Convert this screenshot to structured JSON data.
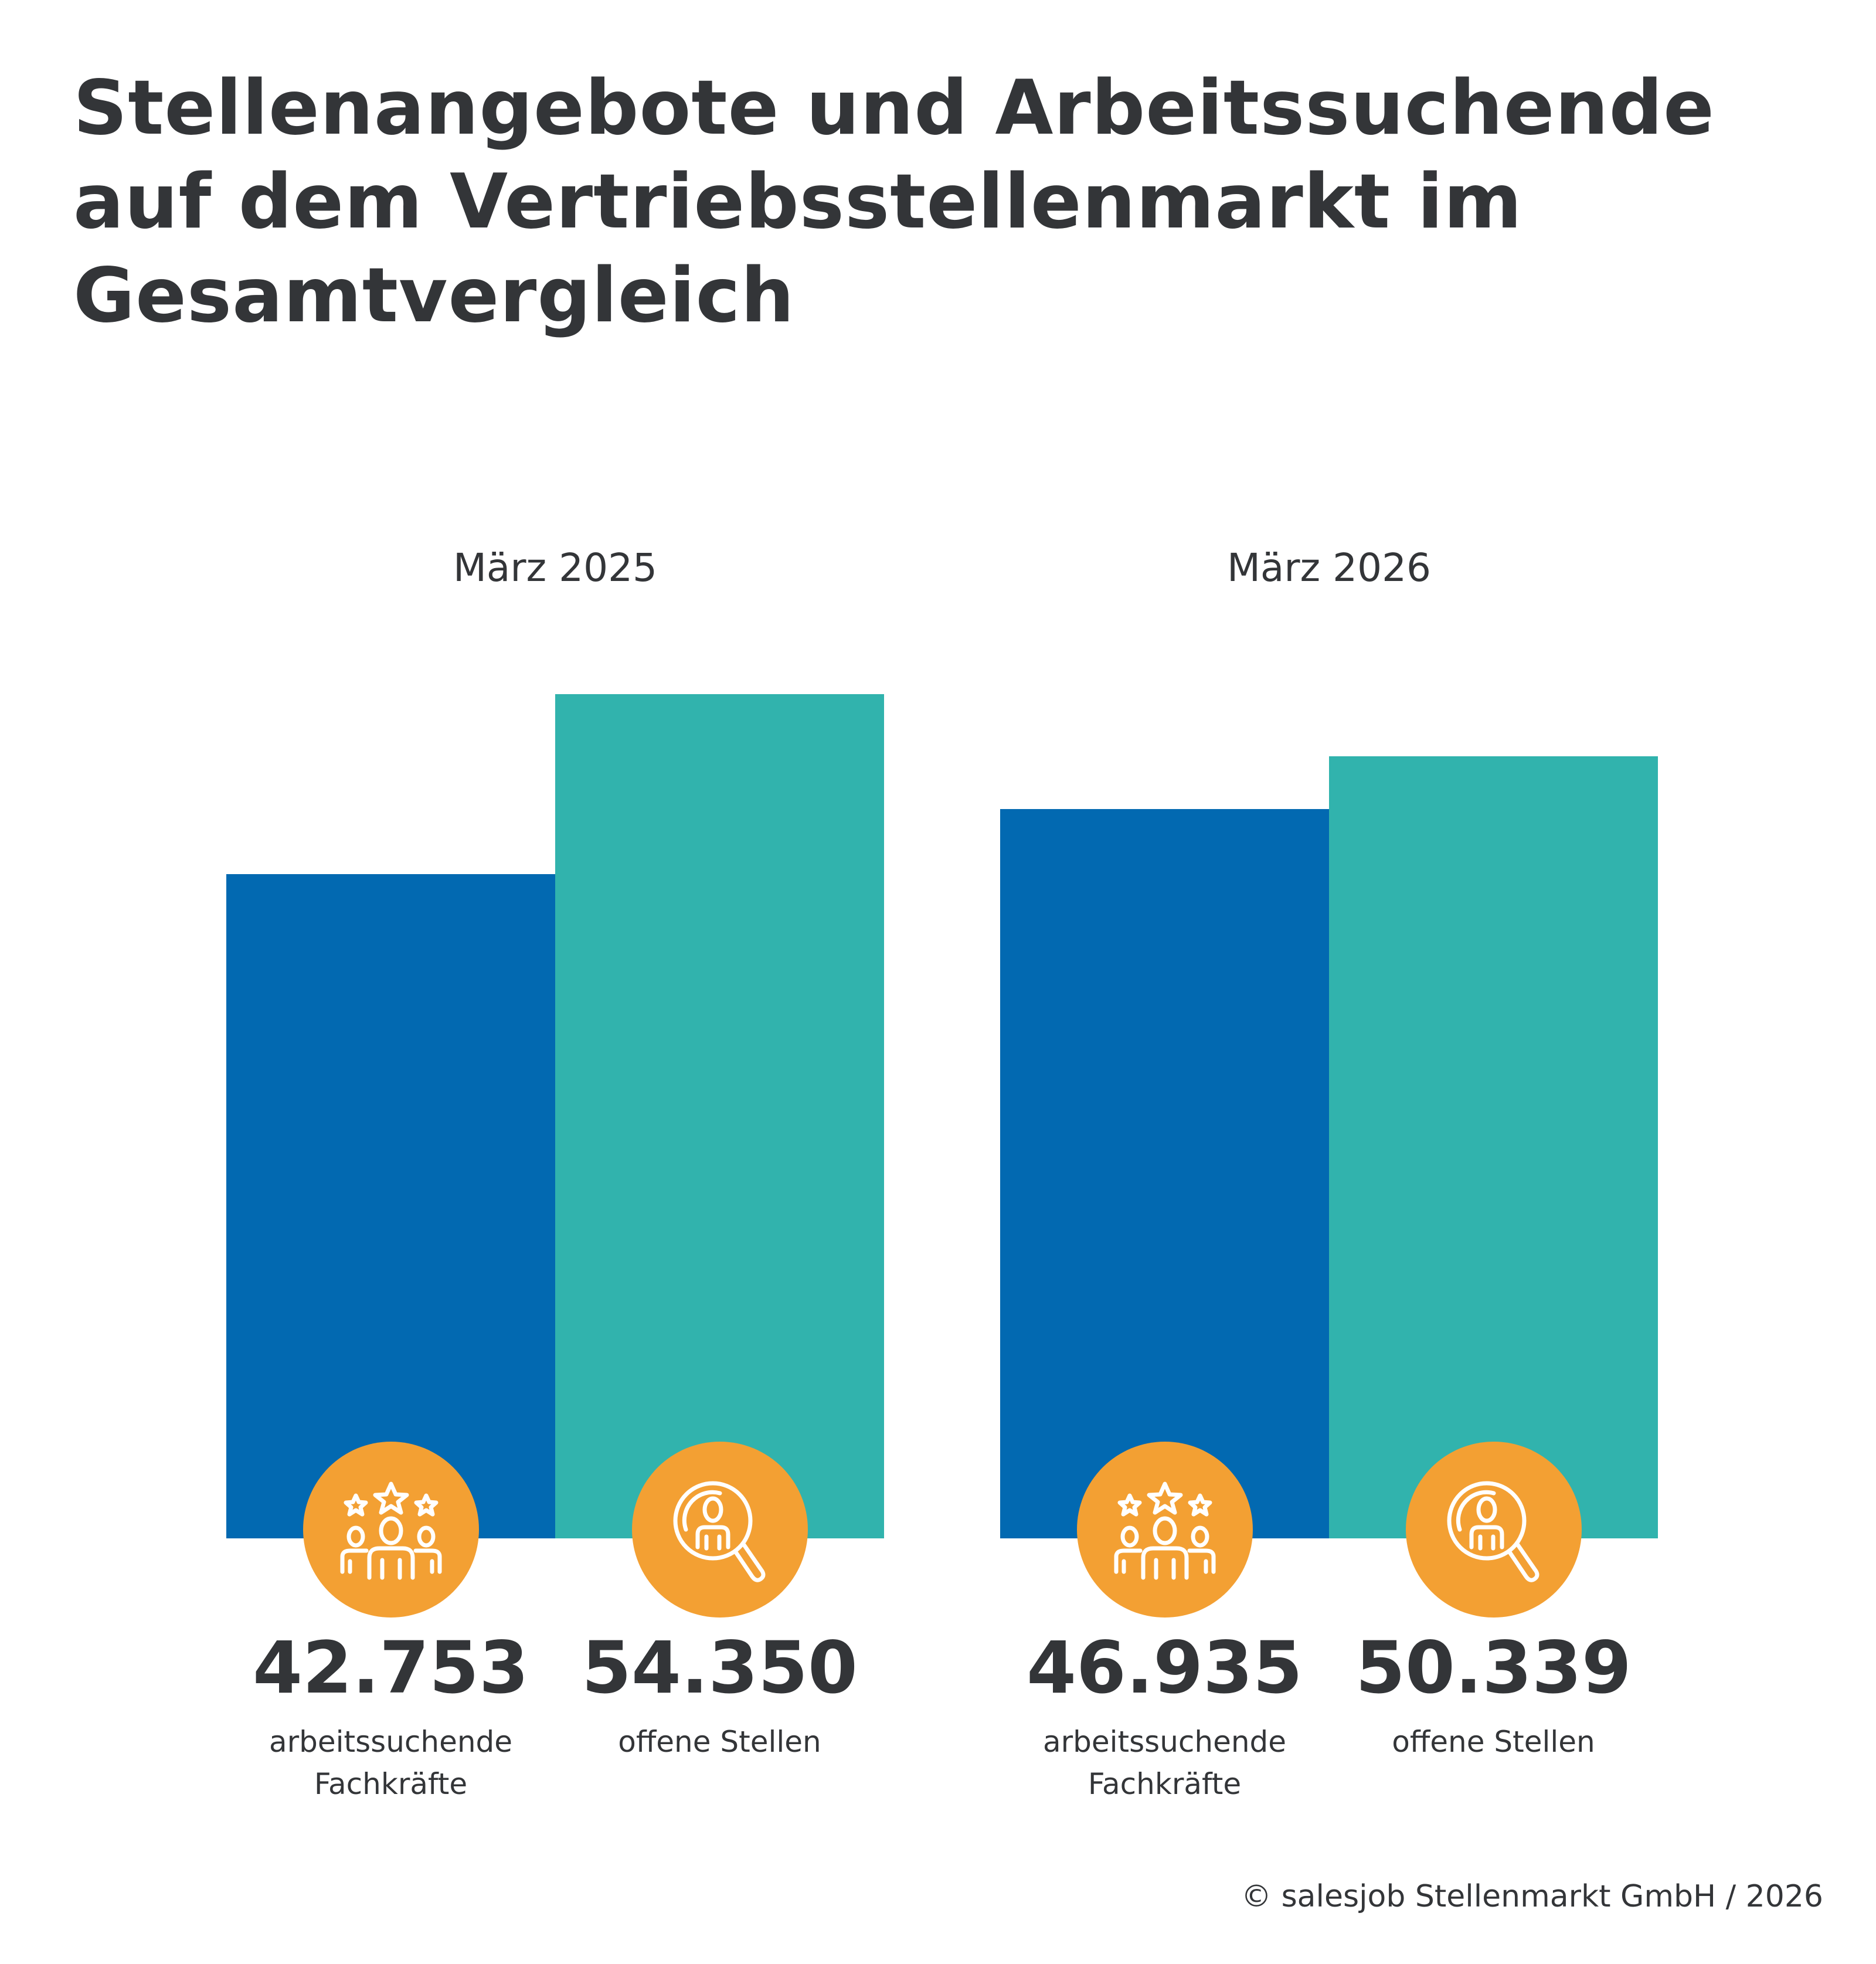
{
  "title_lines": [
    "Stellenangebote und Arbeitssuchende",
    "auf dem Vertriebsstellenmarkt im",
    "Gesamtvergleich"
  ],
  "footer": "© salesjob Stellenmarkt GmbH / 2026",
  "colors": {
    "jobseekers": "#0269b1",
    "vacancies": "#31b3ad",
    "icon_circle": "#f3a033",
    "text": "#333538"
  },
  "chart_data": {
    "type": "bar",
    "title": "Stellenangebote und Arbeitssuchende auf dem Vertriebsstellenmarkt im Gesamtvergleich",
    "categories": [
      "März 2025",
      "März 2026"
    ],
    "series": [
      {
        "name": "arbeitssuchende Fachkräfte",
        "values": [
          42753,
          46935
        ],
        "labels": [
          "42.753",
          "46.935"
        ],
        "label_lines": [
          "arbeitssuchende",
          "Fachkräfte"
        ],
        "icon": "people-stars-icon"
      },
      {
        "name": "offene Stellen",
        "values": [
          54350,
          50339
        ],
        "labels": [
          "54.350",
          "50.339"
        ],
        "label_lines": [
          "offene Stellen"
        ],
        "icon": "magnifier-person-icon"
      }
    ],
    "grid": false,
    "axes_visible": false
  }
}
